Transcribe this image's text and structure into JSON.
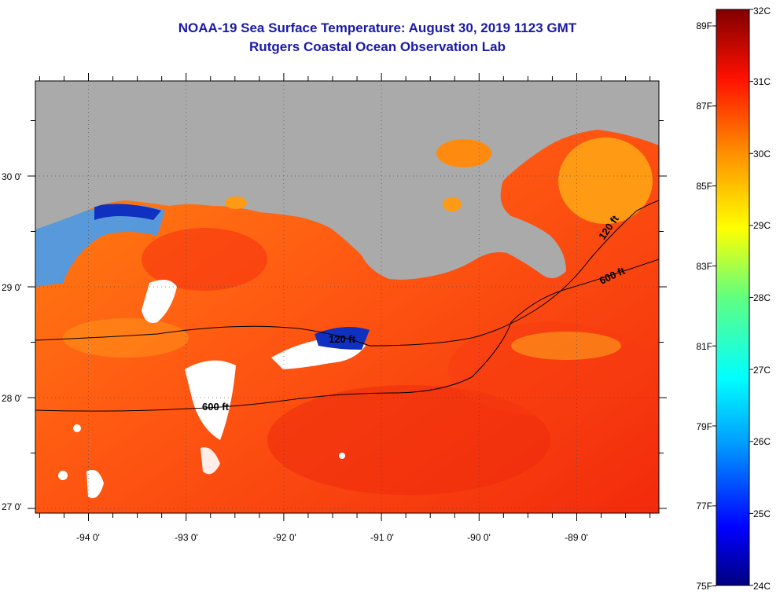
{
  "title": {
    "line1": "NOAA-19 Sea Surface Temperature:  August 30, 2019 1123 GMT",
    "line2": "Rutgers Coastal Ocean Observation Lab"
  },
  "map": {
    "lat_labels": [
      "30 0'",
      "29 0'",
      "28 0'",
      "27 0'"
    ],
    "lon_labels": [
      "-94 0'",
      "-93 0'",
      "-92 0'",
      "-91 0'",
      "-90 0'",
      "-89 0'"
    ],
    "contours": [
      {
        "label": "120 ft",
        "depth_ft": 120
      },
      {
        "label": "600 ft",
        "depth_ft": 600
      }
    ],
    "colors": {
      "land": "#aaaaaa",
      "sea_warm": "#ff3a10",
      "sea_mid": "#ff7a10",
      "cloud": "#ffffff",
      "coastal_cool": "#3aa0ff"
    }
  },
  "colorbar": {
    "fahrenheit_labels": [
      "89F",
      "87F",
      "85F",
      "83F",
      "81F",
      "79F",
      "77F",
      "75F"
    ],
    "celsius_labels": [
      "32C",
      "31C",
      "30C",
      "29C",
      "28C",
      "27C",
      "26C",
      "25C",
      "24C"
    ],
    "min_c": 24,
    "max_c": 32
  }
}
